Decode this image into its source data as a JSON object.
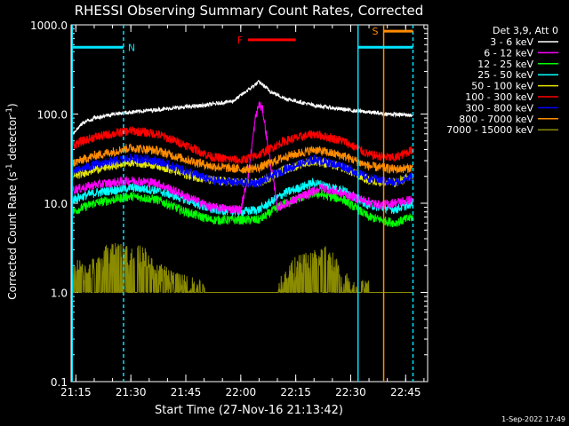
{
  "chart_data": {
    "type": "line",
    "title": "RHESSI Observing Summary Count Rates, Corrected",
    "ylabel_main": "Corrected Count Rate (s",
    "ylabel_sup": "-1",
    "ylabel_mid": " detector",
    "ylabel_end": ")",
    "xlabel": "Start Time (27-Nov-16 21:13:42)",
    "footer": "1-Sep-2022 17:49",
    "y_scale": "log",
    "ylim": [
      0.1,
      1000
    ],
    "y_ticks": [
      {
        "value": 1000,
        "label": "1000.0"
      },
      {
        "value": 100,
        "label": "100.0"
      },
      {
        "value": 10,
        "label": "10.0"
      },
      {
        "value": 1,
        "label": "1.0"
      },
      {
        "value": 0.1,
        "label": "0.1"
      }
    ],
    "xlim": [
      "21:13:42",
      "22:51:00"
    ],
    "x_ticks": [
      "21:15",
      "21:30",
      "21:45",
      "22:00",
      "22:15",
      "22:30",
      "22:45"
    ],
    "legend": {
      "header": "Det 3,9, Att 0",
      "placement": "right outside",
      "entries": [
        {
          "label": "3 - 6 keV",
          "color": "#ffffff"
        },
        {
          "label": "6 - 12 keV",
          "color": "#ff00ff"
        },
        {
          "label": "12 - 25 keV",
          "color": "#00ff00"
        },
        {
          "label": "25 - 50 keV",
          "color": "#00ffff"
        },
        {
          "label": "50 - 100 keV",
          "color": "#e6e600"
        },
        {
          "label": "100 - 300 keV",
          "color": "#ff0000"
        },
        {
          "label": "300 - 800 keV",
          "color": "#0000ff"
        },
        {
          "label": "800 - 7000 keV",
          "color": "#ff8c00"
        },
        {
          "label": "7000 - 15000 keV",
          "color": "#8b8b00"
        }
      ]
    },
    "series": [
      {
        "name": "3 - 6 keV",
        "color": "#ffffff",
        "x": [
          "21:14",
          "21:17",
          "21:20",
          "21:25",
          "21:30",
          "21:40",
          "21:50",
          "21:58",
          "22:03",
          "22:05",
          "22:08",
          "22:12",
          "22:20",
          "22:30",
          "22:40",
          "22:47"
        ],
        "y": [
          60,
          80,
          90,
          100,
          105,
          115,
          125,
          140,
          200,
          230,
          180,
          150,
          125,
          110,
          100,
          97
        ]
      },
      {
        "name": "6 - 12 keV",
        "color": "#ff00ff",
        "x": [
          "21:14",
          "21:20",
          "21:30",
          "21:37",
          "21:45",
          "21:52",
          "22:00",
          "22:02",
          "22:04",
          "22:05",
          "22:06",
          "22:08",
          "22:10",
          "22:15",
          "22:22",
          "22:30",
          "22:38",
          "22:47"
        ],
        "y": [
          14,
          16,
          18,
          17,
          12,
          9,
          8.5,
          20,
          90,
          130,
          110,
          30,
          9,
          11,
          15,
          12,
          9.5,
          11
        ]
      },
      {
        "name": "12 - 25 keV",
        "color": "#00ff00",
        "x": [
          "21:14",
          "21:20",
          "21:30",
          "21:37",
          "21:45",
          "21:52",
          "22:00",
          "22:05",
          "22:12",
          "22:20",
          "22:28",
          "22:35",
          "22:42",
          "22:47"
        ],
        "y": [
          8,
          10,
          12,
          11,
          8,
          6.5,
          6.5,
          6.5,
          10,
          13,
          11,
          7,
          6,
          7
        ]
      },
      {
        "name": "25 - 50 keV",
        "color": "#00ffff",
        "x": [
          "21:14",
          "21:20",
          "21:30",
          "21:37",
          "21:45",
          "21:52",
          "22:00",
          "22:05",
          "22:12",
          "22:20",
          "22:28",
          "22:35",
          "22:42",
          "22:47"
        ],
        "y": [
          11,
          13,
          15,
          14,
          11,
          8.5,
          8,
          8.5,
          13,
          17,
          14,
          9.5,
          8.5,
          10
        ]
      },
      {
        "name": "50 - 100 keV",
        "color": "#e6e600",
        "x": [
          "21:14",
          "21:20",
          "21:30",
          "21:37",
          "21:45",
          "21:52",
          "22:00",
          "22:05",
          "22:12",
          "22:20",
          "22:28",
          "22:35",
          "22:42",
          "22:47"
        ],
        "y": [
          20,
          24,
          29,
          27,
          21,
          18,
          17,
          17,
          24,
          30,
          25,
          18,
          17,
          20
        ]
      },
      {
        "name": "100 - 300 keV",
        "color": "#ff0000",
        "x": [
          "21:14",
          "21:20",
          "21:30",
          "21:37",
          "21:45",
          "21:52",
          "22:00",
          "22:05",
          "22:12",
          "22:20",
          "22:28",
          "22:35",
          "22:42",
          "22:47"
        ],
        "y": [
          45,
          55,
          65,
          60,
          45,
          33,
          30,
          35,
          50,
          60,
          50,
          35,
          32,
          40
        ]
      },
      {
        "name": "300 - 800 keV",
        "color": "#0000ff",
        "x": [
          "21:14",
          "21:20",
          "21:30",
          "21:37",
          "21:45",
          "21:52",
          "22:00",
          "22:05",
          "22:12",
          "22:20",
          "22:28",
          "22:35",
          "22:42",
          "22:47"
        ],
        "y": [
          22,
          27,
          32,
          30,
          23,
          18,
          17,
          17,
          24,
          31,
          26,
          19,
          17,
          20
        ]
      },
      {
        "name": "800 - 7000 keV",
        "color": "#ff8c00",
        "x": [
          "21:14",
          "21:20",
          "21:30",
          "21:37",
          "21:45",
          "21:52",
          "22:00",
          "22:05",
          "22:12",
          "22:20",
          "22:28",
          "22:35",
          "22:42",
          "22:47"
        ],
        "y": [
          28,
          34,
          42,
          39,
          31,
          26,
          24,
          25,
          33,
          40,
          34,
          26,
          24,
          25
        ]
      },
      {
        "name": "7000 - 15000 keV",
        "color": "#8b8b00",
        "x": [
          "21:14",
          "21:16",
          "21:18",
          "21:21",
          "21:23",
          "21:25",
          "21:30",
          "21:34",
          "21:36",
          "21:40",
          "21:45",
          "21:52",
          "21:55",
          "22:00",
          "22:05",
          "22:06",
          "22:08",
          "22:10",
          "22:12",
          "22:15",
          "22:20",
          "22:24",
          "22:27",
          "22:30",
          "22:40",
          "22:47"
        ],
        "y": [
          1.5,
          2.0,
          1.6,
          2.2,
          2.6,
          2.8,
          2.8,
          2.6,
          1.8,
          1.5,
          1.2,
          1.0,
          1.0,
          1.0,
          1.0,
          0.8,
          1.0,
          1.0,
          1.4,
          2.0,
          2.4,
          2.6,
          1.6,
          1.1,
          1.0,
          1.0
        ]
      }
    ],
    "annotations": [
      {
        "label": "N",
        "color": "#00e5ff",
        "bar_from": "21:14",
        "bar_to": "21:28",
        "y_value": 560,
        "vline": "21:28"
      },
      {
        "label": "F",
        "color": "#ff0000",
        "bar_from": "22:02",
        "bar_to": "22:15",
        "y_value": 680
      },
      {
        "label": "S",
        "color": "#ff8c00",
        "bar_from": "22:39",
        "bar_to": "22:47",
        "y_value": 850,
        "vline": "22:39"
      }
    ],
    "vlines": [
      {
        "time": "21:14",
        "color": "#00e5ff",
        "style": "solid"
      },
      {
        "time": "21:28",
        "color": "#00e5ff",
        "style": "dashed"
      },
      {
        "time": "22:32",
        "color": "#00e5ff",
        "style": "solid"
      },
      {
        "time": "22:39",
        "color": "#ff8c00",
        "style": "solid"
      },
      {
        "time": "22:47",
        "color": "#00e5ff",
        "style": "dashed"
      }
    ],
    "extra_bars": [
      {
        "color": "#00e5ff",
        "from": "22:32",
        "to": "22:47",
        "y_value": 560
      }
    ]
  }
}
